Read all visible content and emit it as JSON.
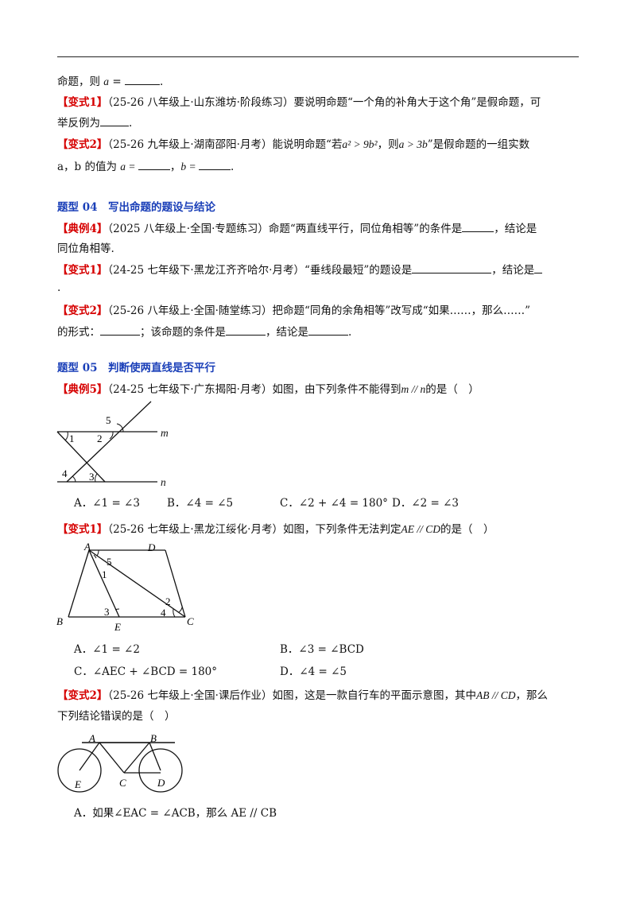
{
  "page": {
    "line0": {
      "pre": "命题，则 ",
      "var": "a",
      "post": " = ",
      "end": "."
    },
    "v1a": {
      "tag": "【变式1】",
      "text": "（25-26 八年级上·山东潍坊·阶段练习）要说明命题“一个角的补角大于这个角”是假命题，可"
    },
    "v1a_cont": {
      "pre": "举反例为",
      "end": "."
    },
    "v2a": {
      "tag": "【变式2】",
      "pre": "（25-26 九年级上·湖南邵阳·月考）能说明命题“若",
      "math1": "a² > 9b²",
      "mid": "，则",
      "math2": "a > 3b",
      "post": "”是假命题的一组实数"
    },
    "v2a_cont": {
      "pre": "a，b 的值为 ",
      "mid": "a = ",
      "sep": "，",
      "b": "b = ",
      "end": "."
    },
    "sec04": "题型 04　写出命题的题设与结论",
    "ex4": {
      "tag": "【典例4】",
      "text": "（2025 八年级上·全国·专题练习）命题“两直线平行，同位角相等”的条件是",
      "post": "，结论是"
    },
    "ex4_cont": "同位角相等.",
    "v1b": {
      "tag": "【变式1】",
      "text": "（24-25 七年级下·黑龙江齐齐哈尔·月考）“垂线段最短”的题设是",
      "post": "，结论是"
    },
    "v1b_cont": ".",
    "v2b": {
      "tag": "【变式2】",
      "text": "（25-26 八年级上·全国·随堂练习）把命题“同角的余角相等”改写成“如果……，那么……”"
    },
    "v2b_cont": {
      "pre": "的形式：",
      "mid1": "；该命题的条件是",
      "mid2": "，结论是",
      "end": "."
    },
    "sec05": "题型 05　判断使两直线是否平行",
    "ex5": {
      "tag": "【典例5】",
      "text": "（24-25 七年级下·广东揭阳·月考）如图，由下列条件不能得到",
      "math": "m // n",
      "post": "的是（　）"
    },
    "ex5_opts": {
      "A": "A．∠1 = ∠3",
      "B": "B．∠4 = ∠5",
      "C": "C．∠2 + ∠4 = 180°",
      "D": "D．∠2 = ∠3"
    },
    "v1c": {
      "tag": "【变式1】",
      "text": "（25-26 七年级上·黑龙江绥化·月考）如图，下列条件无法判定",
      "math": "AE // CD",
      "post": "的是（　）"
    },
    "v1c_opts": {
      "A": "A．∠1 = ∠2",
      "B": "B．∠3 = ∠BCD",
      "C": "C．∠AEC + ∠BCD = 180°",
      "D": "D．∠4 = ∠5"
    },
    "v2c": {
      "tag": "【变式2】",
      "text": "（25-26 七年级上·全国·课后作业）如图，这是一款自行车的平面示意图，其中",
      "math": "AB // CD",
      "post": "，那么"
    },
    "v2c_cont": "下列结论错误的是（　）",
    "v2c_optA": "A．如果∠EAC = ∠ACB，那么 AE // CB",
    "fig1": {
      "l5": "5",
      "l1": "1",
      "l2": "2",
      "lm": "m",
      "l4": "4",
      "l3": "3",
      "ln": "n"
    },
    "fig2": {
      "A": "A",
      "D": "D",
      "l5": "5",
      "l1": "1",
      "l2": "2",
      "l3": "3",
      "l4": "4",
      "B": "B",
      "E": "E",
      "C": "C"
    },
    "fig3": {
      "A": "A",
      "B": "B",
      "C": "C",
      "D": "D",
      "E": "E"
    }
  }
}
